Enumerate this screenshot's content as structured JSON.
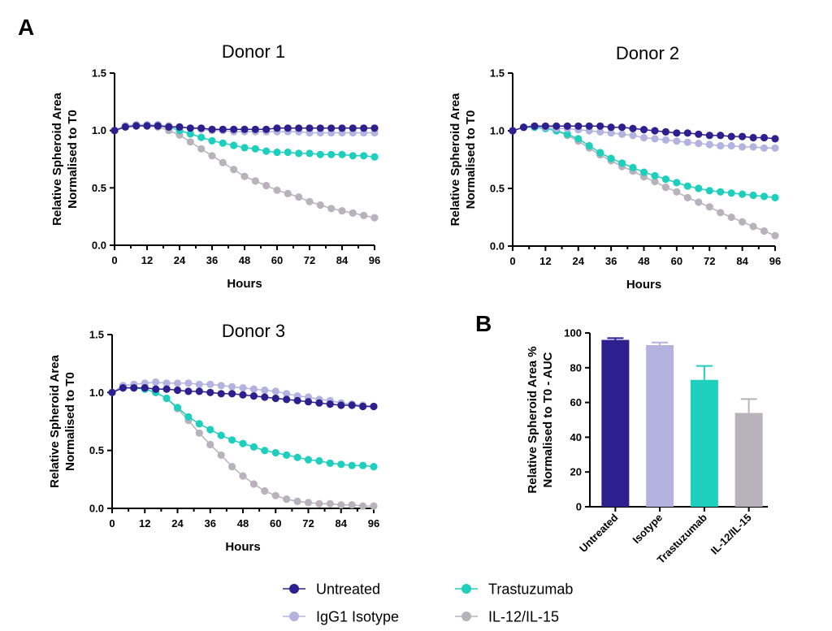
{
  "panel_labels": {
    "a": "A",
    "b": "B"
  },
  "colors": {
    "untreated": "#2e1f8e",
    "isotype": "#b4b3df",
    "trastuzumab": "#1fcfbd",
    "il": "#b8b2bc"
  },
  "chart_data": [
    {
      "type": "line",
      "title": "Donor 1",
      "xlabel": "Hours",
      "ylabel": [
        "Relative Spheroid Area",
        "Normalised to T0"
      ],
      "xlim": [
        0,
        96
      ],
      "ylim": [
        0,
        1.5
      ],
      "xticks": [
        "0",
        "12",
        "24",
        "36",
        "48",
        "60",
        "72",
        "84",
        "96"
      ],
      "yticks": [
        "0.0",
        "0.5",
        "1.0",
        "1.5"
      ],
      "grid": false,
      "x": [
        0,
        4,
        8,
        12,
        16,
        20,
        24,
        28,
        32,
        36,
        40,
        44,
        48,
        52,
        56,
        60,
        64,
        68,
        72,
        76,
        80,
        84,
        88,
        92,
        96
      ],
      "series": [
        {
          "name": "Untreated",
          "values": [
            1.0,
            1.03,
            1.04,
            1.04,
            1.04,
            1.03,
            1.03,
            1.02,
            1.02,
            1.01,
            1.01,
            1.01,
            1.01,
            1.01,
            1.01,
            1.02,
            1.02,
            1.02,
            1.02,
            1.02,
            1.02,
            1.02,
            1.02,
            1.02,
            1.02
          ]
        },
        {
          "name": "IgG1 Isotype",
          "values": [
            1.0,
            1.04,
            1.05,
            1.05,
            1.05,
            1.04,
            1.03,
            1.02,
            1.01,
            1.0,
            1.0,
            0.99,
            0.99,
            0.99,
            0.99,
            0.99,
            0.99,
            0.99,
            0.98,
            0.98,
            0.98,
            0.98,
            0.98,
            0.98,
            0.98
          ]
        },
        {
          "name": "Trastuzumab",
          "values": [
            1.0,
            1.04,
            1.05,
            1.05,
            1.05,
            1.03,
            1.0,
            0.97,
            0.94,
            0.91,
            0.89,
            0.87,
            0.85,
            0.84,
            0.82,
            0.81,
            0.81,
            0.8,
            0.8,
            0.79,
            0.79,
            0.79,
            0.78,
            0.78,
            0.77
          ]
        },
        {
          "name": "IL-12/IL-15",
          "values": [
            1.0,
            1.04,
            1.04,
            1.04,
            1.03,
            1.0,
            0.96,
            0.9,
            0.84,
            0.78,
            0.72,
            0.66,
            0.6,
            0.56,
            0.52,
            0.48,
            0.45,
            0.42,
            0.38,
            0.35,
            0.32,
            0.3,
            0.28,
            0.26,
            0.24
          ]
        }
      ]
    },
    {
      "type": "line",
      "title": "Donor 2",
      "xlabel": "Hours",
      "ylabel": [
        "Relative Spheroid Area",
        "Normalised to T0"
      ],
      "xlim": [
        0,
        96
      ],
      "ylim": [
        0,
        1.5
      ],
      "xticks": [
        "0",
        "12",
        "24",
        "36",
        "48",
        "60",
        "72",
        "84",
        "96"
      ],
      "yticks": [
        "0.0",
        "0.5",
        "1.0",
        "1.5"
      ],
      "grid": false,
      "x": [
        0,
        4,
        8,
        12,
        16,
        20,
        24,
        28,
        32,
        36,
        40,
        44,
        48,
        52,
        56,
        60,
        64,
        68,
        72,
        76,
        80,
        84,
        88,
        92,
        96
      ],
      "series": [
        {
          "name": "Untreated",
          "values": [
            1.0,
            1.03,
            1.04,
            1.04,
            1.04,
            1.04,
            1.04,
            1.04,
            1.04,
            1.03,
            1.03,
            1.02,
            1.01,
            1.0,
            0.99,
            0.98,
            0.98,
            0.97,
            0.96,
            0.96,
            0.95,
            0.95,
            0.94,
            0.94,
            0.93
          ]
        },
        {
          "name": "IgG1 Isotype",
          "values": [
            1.0,
            1.03,
            1.04,
            1.03,
            1.02,
            1.02,
            1.01,
            1.0,
            0.99,
            0.98,
            0.97,
            0.96,
            0.94,
            0.93,
            0.92,
            0.91,
            0.9,
            0.89,
            0.88,
            0.87,
            0.87,
            0.86,
            0.86,
            0.85,
            0.85
          ]
        },
        {
          "name": "Trastuzumab",
          "values": [
            1.0,
            1.03,
            1.03,
            1.02,
            1.0,
            0.97,
            0.93,
            0.87,
            0.81,
            0.76,
            0.72,
            0.68,
            0.64,
            0.61,
            0.58,
            0.55,
            0.52,
            0.5,
            0.48,
            0.47,
            0.46,
            0.45,
            0.44,
            0.43,
            0.42
          ]
        },
        {
          "name": "IL-12/IL-15",
          "values": [
            1.0,
            1.03,
            1.03,
            1.02,
            1.0,
            0.96,
            0.91,
            0.85,
            0.79,
            0.74,
            0.69,
            0.65,
            0.6,
            0.56,
            0.51,
            0.47,
            0.42,
            0.38,
            0.34,
            0.29,
            0.25,
            0.21,
            0.17,
            0.13,
            0.09
          ]
        }
      ]
    },
    {
      "type": "line",
      "title": "Donor 3",
      "xlabel": "Hours",
      "ylabel": [
        "Relative Spheroid Area",
        "Normalised to T0"
      ],
      "xlim": [
        0,
        96
      ],
      "ylim": [
        0,
        1.5
      ],
      "xticks": [
        "0",
        "12",
        "24",
        "36",
        "48",
        "60",
        "72",
        "84",
        "96"
      ],
      "yticks": [
        "0.0",
        "0.5",
        "1.0",
        "1.5"
      ],
      "grid": false,
      "x": [
        0,
        4,
        8,
        12,
        16,
        20,
        24,
        28,
        32,
        36,
        40,
        44,
        48,
        52,
        56,
        60,
        64,
        68,
        72,
        76,
        80,
        84,
        88,
        92,
        96
      ],
      "series": [
        {
          "name": "Untreated",
          "values": [
            1.0,
            1.04,
            1.04,
            1.04,
            1.03,
            1.03,
            1.02,
            1.01,
            1.01,
            1.0,
            0.99,
            0.99,
            0.98,
            0.97,
            0.96,
            0.95,
            0.94,
            0.93,
            0.92,
            0.91,
            0.9,
            0.89,
            0.89,
            0.88,
            0.88
          ]
        },
        {
          "name": "IgG1 Isotype",
          "values": [
            1.0,
            1.06,
            1.07,
            1.08,
            1.09,
            1.08,
            1.08,
            1.08,
            1.07,
            1.07,
            1.06,
            1.05,
            1.04,
            1.03,
            1.02,
            1.01,
            0.99,
            0.97,
            0.96,
            0.94,
            0.93,
            0.91,
            0.9,
            0.89,
            0.88
          ]
        },
        {
          "name": "Trastuzumab",
          "values": [
            1.0,
            1.04,
            1.04,
            1.03,
            1.0,
            0.95,
            0.87,
            0.79,
            0.73,
            0.68,
            0.63,
            0.59,
            0.56,
            0.53,
            0.5,
            0.48,
            0.46,
            0.44,
            0.42,
            0.41,
            0.39,
            0.38,
            0.37,
            0.37,
            0.36
          ]
        },
        {
          "name": "IL-12/IL-15",
          "values": [
            1.0,
            1.04,
            1.04,
            1.03,
            1.0,
            0.95,
            0.86,
            0.76,
            0.65,
            0.55,
            0.46,
            0.36,
            0.28,
            0.21,
            0.15,
            0.11,
            0.08,
            0.06,
            0.05,
            0.04,
            0.04,
            0.03,
            0.03,
            0.02,
            0.02
          ]
        }
      ]
    },
    {
      "type": "bar",
      "ylabel": [
        "Relative Spheroid Area %",
        "Normalised to T0 - AUC"
      ],
      "categories": [
        "Untreated",
        "Isotype",
        "Trastuzumab",
        "IL-12/IL-15"
      ],
      "values": [
        96,
        93,
        73,
        54
      ],
      "errors": [
        1,
        1.5,
        8,
        8
      ],
      "ylim": [
        0,
        100
      ],
      "yticks": [
        "0",
        "20",
        "40",
        "60",
        "80",
        "100"
      ],
      "grid": false
    }
  ],
  "legend": {
    "placement": "bottom",
    "items": [
      {
        "label": "Untreated",
        "color": "#2e1f8e"
      },
      {
        "label": "IgG1 Isotype",
        "color": "#b4b3df"
      },
      {
        "label": "Trastuzumab",
        "color": "#1fcfbd"
      },
      {
        "label": "IL-12/IL-15",
        "color": "#b8b2bc"
      }
    ]
  }
}
